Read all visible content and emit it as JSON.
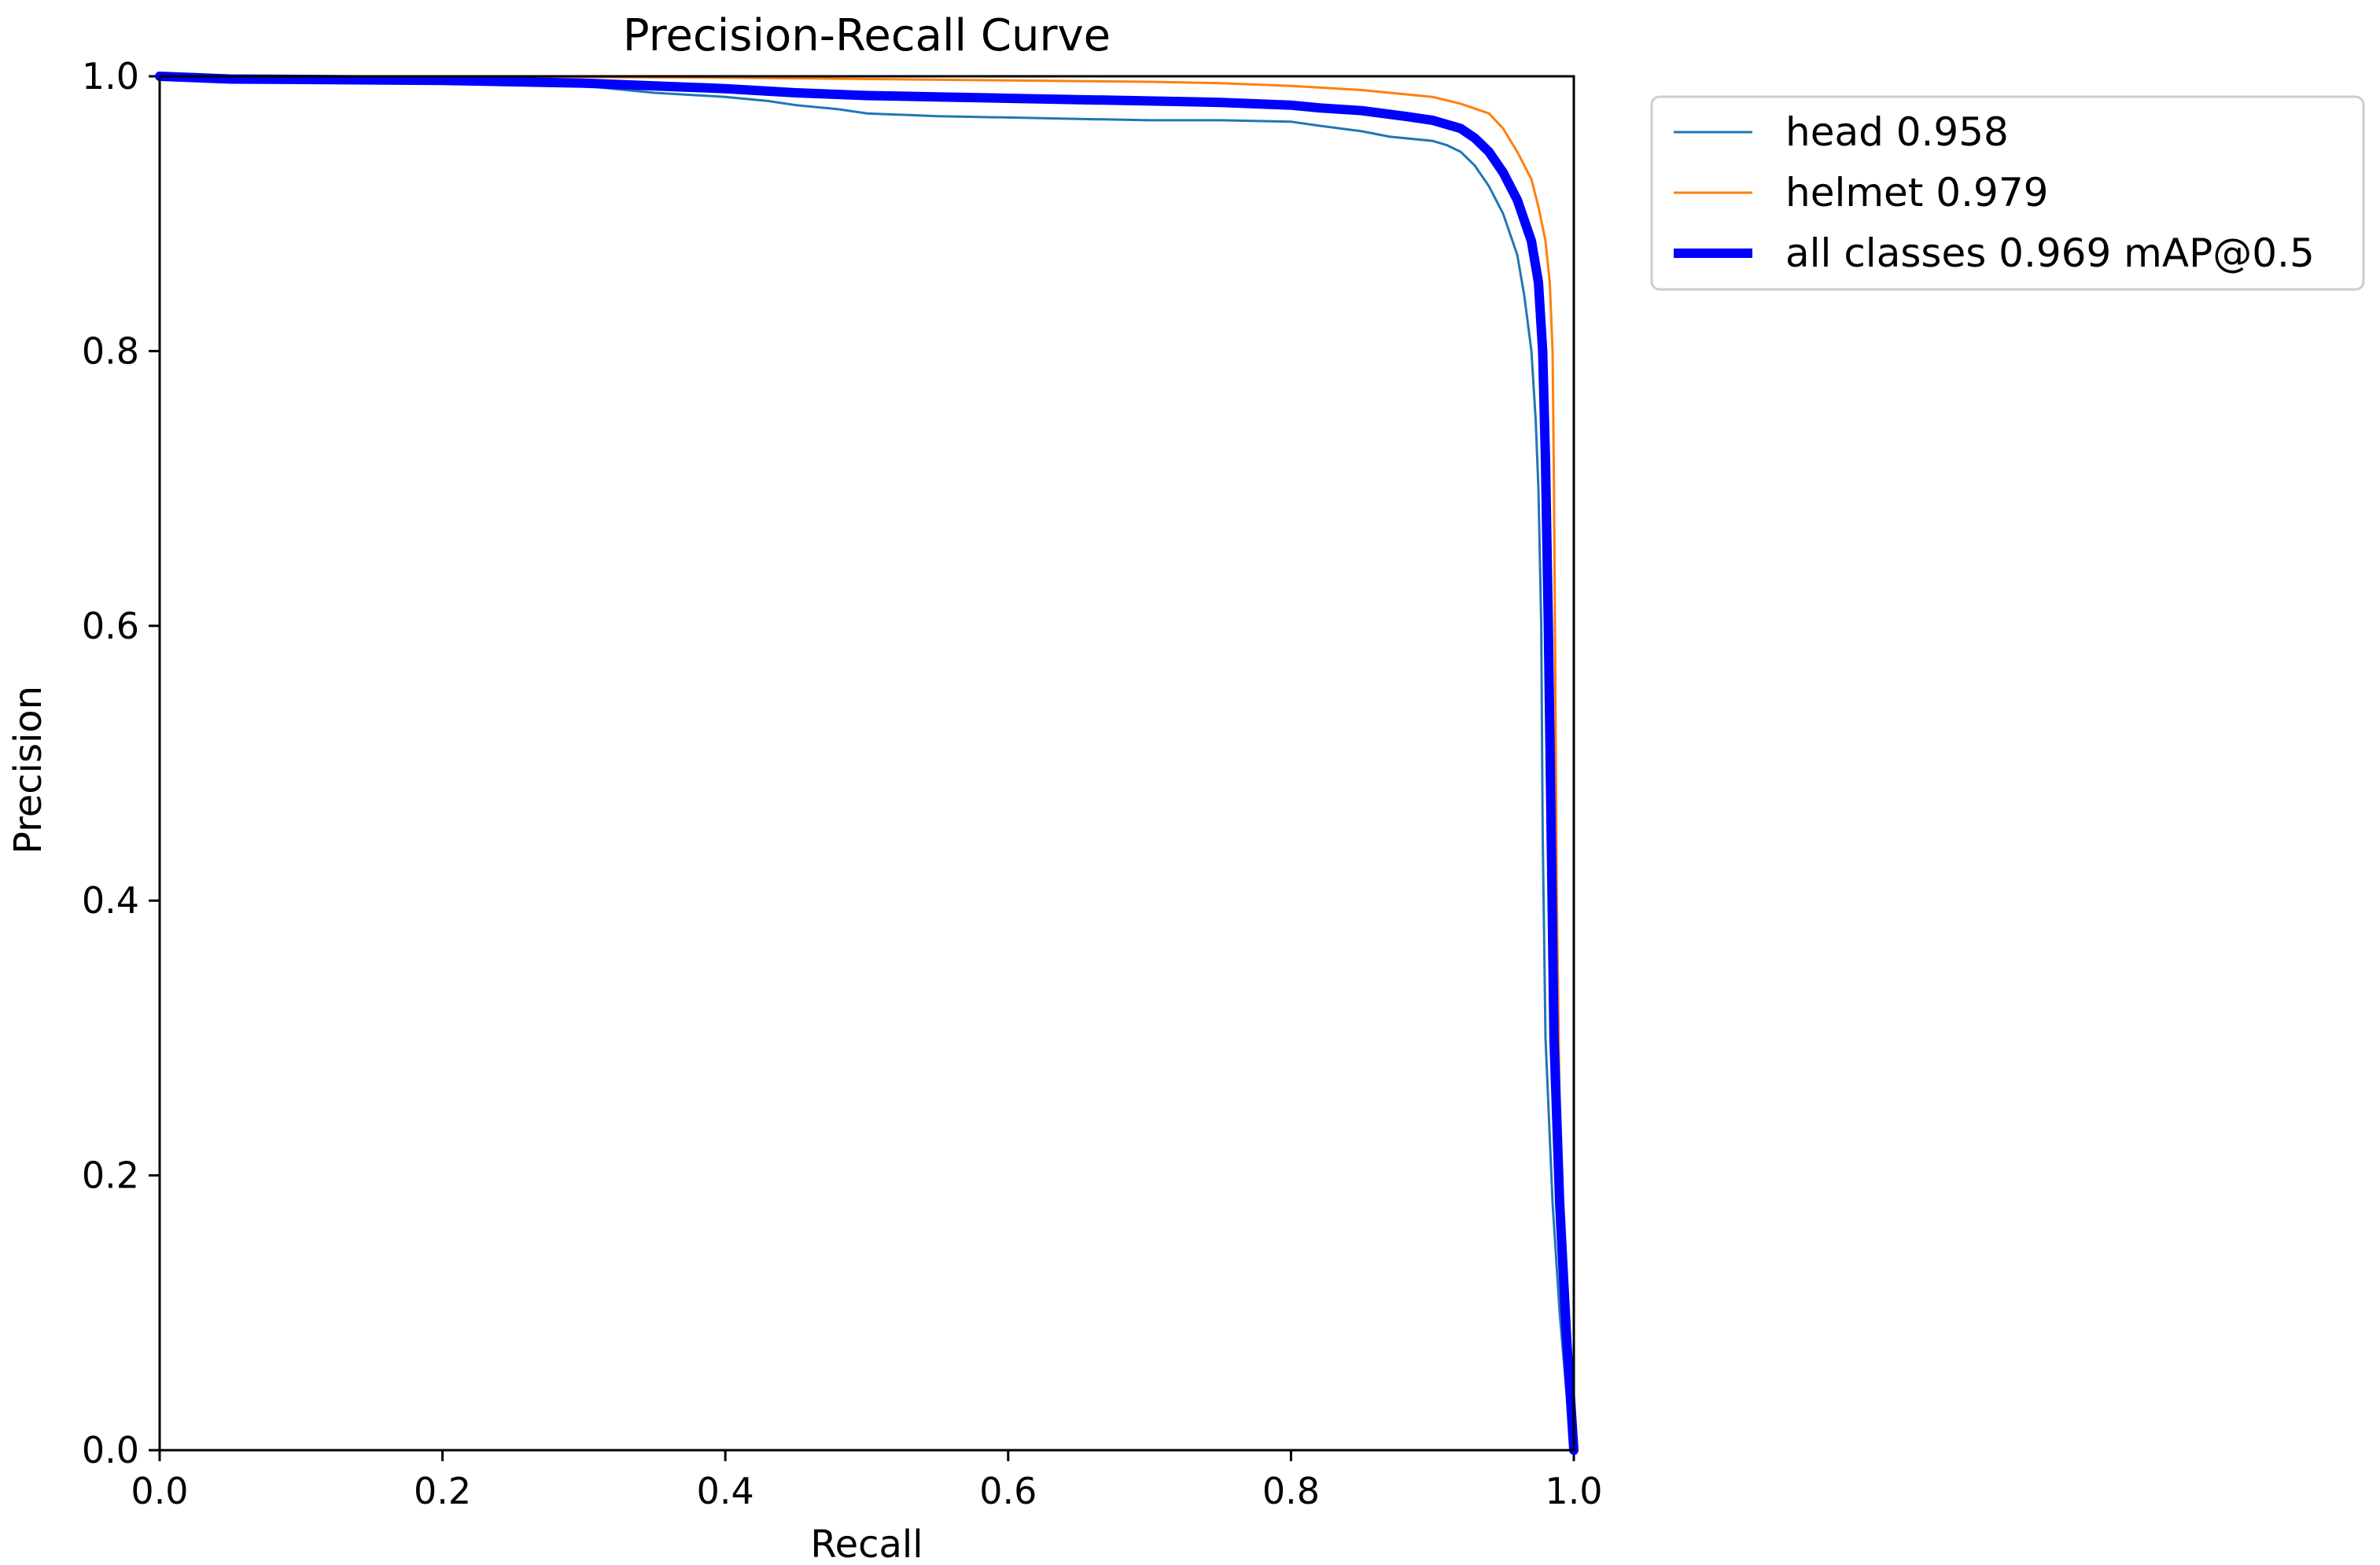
{
  "chart_data": {
    "type": "line",
    "title": "Precision-Recall Curve",
    "xlabel": "Recall",
    "ylabel": "Precision",
    "xlim": [
      0,
      1
    ],
    "ylim": [
      0,
      1
    ],
    "grid": false,
    "legend_position": "outside-top-right",
    "x_ticks": [
      "0.0",
      "0.2",
      "0.4",
      "0.6",
      "0.8",
      "1.0"
    ],
    "y_ticks": [
      "0.0",
      "0.2",
      "0.4",
      "0.6",
      "0.8",
      "1.0"
    ],
    "series": [
      {
        "name": "head 0.958",
        "color": "#1f77b4",
        "points": [
          [
            0.0,
            1.0
          ],
          [
            0.1,
            0.999
          ],
          [
            0.2,
            0.997
          ],
          [
            0.3,
            0.993
          ],
          [
            0.33,
            0.99
          ],
          [
            0.35,
            0.988
          ],
          [
            0.4,
            0.985
          ],
          [
            0.43,
            0.982
          ],
          [
            0.45,
            0.979
          ],
          [
            0.48,
            0.976
          ],
          [
            0.5,
            0.973
          ],
          [
            0.55,
            0.971
          ],
          [
            0.6,
            0.97
          ],
          [
            0.65,
            0.969
          ],
          [
            0.7,
            0.968
          ],
          [
            0.75,
            0.968
          ],
          [
            0.8,
            0.967
          ],
          [
            0.82,
            0.964
          ],
          [
            0.85,
            0.96
          ],
          [
            0.87,
            0.956
          ],
          [
            0.9,
            0.953
          ],
          [
            0.91,
            0.95
          ],
          [
            0.92,
            0.945
          ],
          [
            0.93,
            0.935
          ],
          [
            0.94,
            0.92
          ],
          [
            0.95,
            0.9
          ],
          [
            0.96,
            0.87
          ],
          [
            0.965,
            0.84
          ],
          [
            0.97,
            0.8
          ],
          [
            0.973,
            0.75
          ],
          [
            0.975,
            0.7
          ],
          [
            0.977,
            0.6
          ],
          [
            0.978,
            0.45
          ],
          [
            0.98,
            0.3
          ],
          [
            0.985,
            0.18
          ],
          [
            0.99,
            0.1
          ],
          [
            0.995,
            0.04
          ],
          [
            1.0,
            0.0
          ]
        ]
      },
      {
        "name": "helmet 0.979",
        "color": "#ff7f0e",
        "points": [
          [
            0.0,
            1.0
          ],
          [
            0.2,
            1.0
          ],
          [
            0.4,
            0.999
          ],
          [
            0.5,
            0.998
          ],
          [
            0.6,
            0.997
          ],
          [
            0.7,
            0.996
          ],
          [
            0.75,
            0.995
          ],
          [
            0.8,
            0.993
          ],
          [
            0.85,
            0.99
          ],
          [
            0.88,
            0.987
          ],
          [
            0.9,
            0.985
          ],
          [
            0.92,
            0.98
          ],
          [
            0.94,
            0.973
          ],
          [
            0.95,
            0.962
          ],
          [
            0.96,
            0.945
          ],
          [
            0.97,
            0.925
          ],
          [
            0.975,
            0.905
          ],
          [
            0.98,
            0.88
          ],
          [
            0.983,
            0.85
          ],
          [
            0.985,
            0.8
          ],
          [
            0.986,
            0.7
          ],
          [
            0.987,
            0.55
          ],
          [
            0.988,
            0.4
          ],
          [
            0.99,
            0.25
          ],
          [
            0.993,
            0.15
          ],
          [
            0.996,
            0.07
          ],
          [
            1.0,
            0.0
          ]
        ]
      },
      {
        "name": "all classes 0.969 mAP@0.5",
        "color": "#0000ff",
        "points": [
          [
            0.0,
            1.0
          ],
          [
            0.05,
            0.998
          ],
          [
            0.2,
            0.997
          ],
          [
            0.3,
            0.995
          ],
          [
            0.35,
            0.993
          ],
          [
            0.4,
            0.991
          ],
          [
            0.45,
            0.988
          ],
          [
            0.5,
            0.986
          ],
          [
            0.55,
            0.985
          ],
          [
            0.6,
            0.984
          ],
          [
            0.65,
            0.983
          ],
          [
            0.7,
            0.982
          ],
          [
            0.75,
            0.981
          ],
          [
            0.8,
            0.979
          ],
          [
            0.82,
            0.977
          ],
          [
            0.85,
            0.975
          ],
          [
            0.88,
            0.971
          ],
          [
            0.9,
            0.968
          ],
          [
            0.92,
            0.962
          ],
          [
            0.93,
            0.955
          ],
          [
            0.94,
            0.945
          ],
          [
            0.95,
            0.93
          ],
          [
            0.96,
            0.91
          ],
          [
            0.97,
            0.88
          ],
          [
            0.975,
            0.85
          ],
          [
            0.978,
            0.8
          ],
          [
            0.98,
            0.72
          ],
          [
            0.982,
            0.6
          ],
          [
            0.984,
            0.45
          ],
          [
            0.986,
            0.3
          ],
          [
            0.99,
            0.18
          ],
          [
            0.995,
            0.08
          ],
          [
            1.0,
            0.0
          ]
        ]
      }
    ]
  }
}
